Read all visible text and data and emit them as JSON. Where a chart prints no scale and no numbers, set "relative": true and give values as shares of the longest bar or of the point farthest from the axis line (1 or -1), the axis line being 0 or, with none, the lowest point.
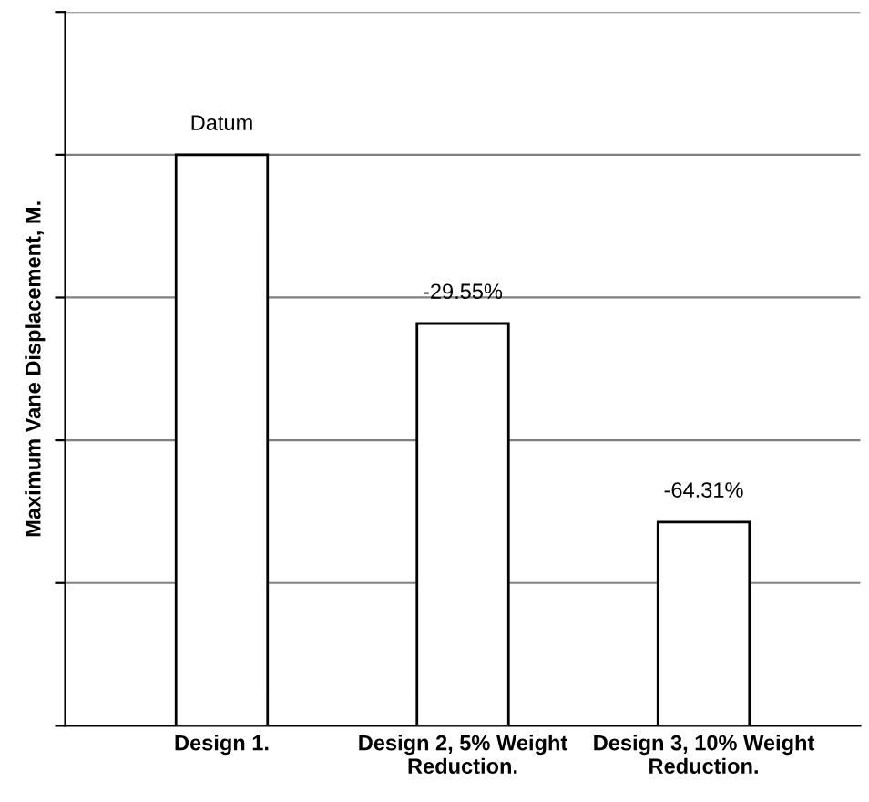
{
  "chart_data": {
    "type": "bar",
    "ylabel": "Maximum Vane Displacement, M.",
    "relative": true,
    "categories": [
      "Design 1.",
      "Design 2, 5% Weight\nReduction.",
      "Design 3, 10% Weight\nReduction."
    ],
    "values": [
      1,
      0.7045,
      0.3569
    ],
    "annotations": [
      {
        "text": "Datum",
        "x": "Design 1.",
        "y": 1
      },
      {
        "text": "-29.55%",
        "x": "Design 2, 5% Weight\nReduction.",
        "y": 0.7045
      },
      {
        "text": "-64.31%",
        "x": "Design 3, 10% Weight\nReduction.",
        "y": 0.3569
      }
    ],
    "color": "#ffffff",
    "grid": "y",
    "legend": false
  }
}
